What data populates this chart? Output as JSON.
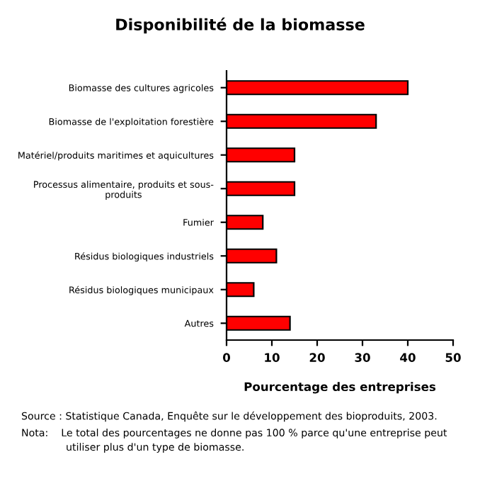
{
  "chart_data": {
    "type": "bar",
    "orientation": "horizontal",
    "title": "Disponibilité de la biomasse",
    "xlabel": "Pourcentage des entreprises",
    "categories": [
      "Biomasse des cultures agricoles",
      "Biomasse de l'exploitation forestière",
      "Matériel/produits maritimes et aquicultures",
      "Processus alimentaire, produits et sous-\nproduits",
      "Fumier",
      "Résidus biologiques industriels",
      "Résidus biologiques municipaux",
      "Autres"
    ],
    "values": [
      40,
      33,
      15,
      15,
      8,
      11,
      6,
      14
    ],
    "color": "#ff0000",
    "xlim": [
      0,
      50
    ],
    "xticks": [
      0,
      10,
      20,
      30,
      40,
      50
    ],
    "grid": false,
    "legend": false,
    "annotations": [
      "Source : Statistique Canada, Enquête sur le développement des bioproduits, 2003.",
      "Nota:    Le total des pourcentages ne donne pas 100 % parce qu'une entreprise peut\n              utiliser plus d'un type de biomasse."
    ]
  }
}
